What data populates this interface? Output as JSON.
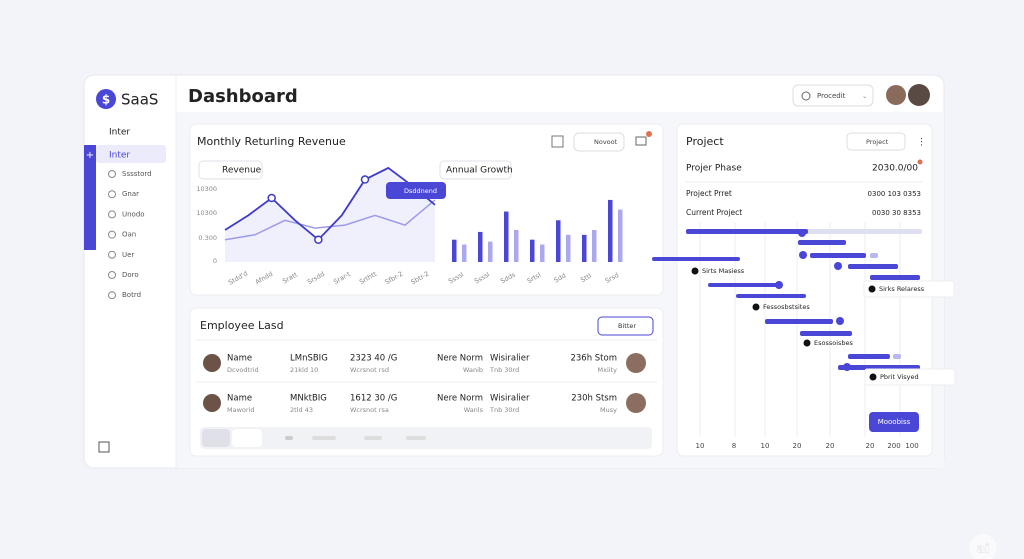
{
  "brand": "SaaS",
  "header": {
    "title": "Dashboard",
    "button": "Procedit"
  },
  "sidebar": {
    "section": "Inter",
    "items": [
      "Inter",
      "Sssstord",
      "Gnar",
      "Unodo",
      "Oan",
      "Uer",
      "Doro",
      "Botrd"
    ]
  },
  "revenue": {
    "title": "Monthly Returling Revenue",
    "button": "Novoot",
    "legend": [
      "Revenue",
      "Annual Growth"
    ],
    "y_labels": [
      "10300",
      "10300",
      "0.300",
      "0"
    ],
    "tooltip": "Dsddnend",
    "x_labels_left": [
      "Stdd'd",
      "Afndd",
      "Sratt",
      "Srsdd",
      "Srar-t",
      "Srthtt",
      "Sfbr-2",
      "Sbtr-2"
    ],
    "x_labels_right": [
      "Ssssl",
      "Ssssl",
      "Sdds",
      "Srtsl",
      "Sdd",
      "Sttl",
      "Srsd"
    ],
    "line_main": [
      33,
      48,
      66,
      43,
      23,
      48,
      85,
      97,
      79,
      59
    ],
    "line_soft": [
      23,
      28,
      43,
      35,
      38,
      48,
      38,
      64
    ],
    "bars_dark": [
      23,
      31,
      52,
      23,
      43,
      28,
      64
    ],
    "bars_light": [
      18,
      21,
      33,
      18,
      28,
      33,
      54
    ]
  },
  "employees": {
    "title": "Employee Lasd",
    "button": "Bitter",
    "rows": [
      [
        "Name",
        "Dcvodtrid",
        "LMnSBIG",
        "21kld 10",
        "2323 40 /G",
        "Wcrsnot rsd",
        "Nere Norm",
        "Wanib",
        "Wisiralier",
        "Tnb 30rd",
        "236h Stom",
        "Mxiity"
      ],
      [
        "Name",
        "Maworid",
        "MNktBIG",
        "2tld 43",
        "1612 30 /G",
        "Wcrsnot rsa",
        "Nere Norm",
        "Wanls",
        "Wisiralier",
        "Tnb 30rd",
        "230h Stsm",
        "Musy"
      ]
    ]
  },
  "project": {
    "title": "Project",
    "dropdown": "Project",
    "phase_label": "Projer Phase",
    "phase_value": "2030.0/00",
    "rows": [
      [
        "Project Prret",
        "0300  103  0353"
      ],
      [
        "Current Project",
        "0030  30  8353"
      ]
    ],
    "tasks": [
      "Sirts Masiess",
      "Sirks Relaress",
      "Fessosbstsites",
      "Esossoisbes",
      "Pbrit Visyed"
    ],
    "button": "Mooobiss",
    "x_labels": [
      "10",
      "8",
      "10",
      "20",
      "20",
      "20",
      "200",
      "100"
    ]
  },
  "watermark": "ai"
}
